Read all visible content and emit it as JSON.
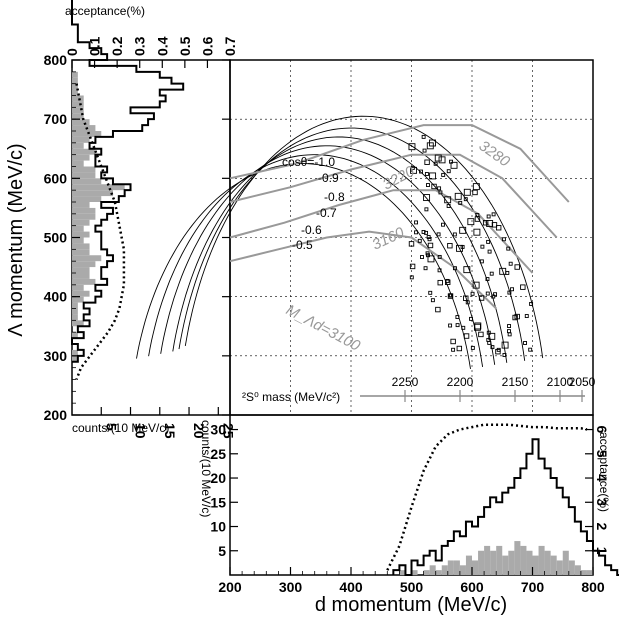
{
  "chart_data": [
    {
      "id": "left",
      "type": "histogram",
      "ylabel": "Λ momentum (MeV/c)",
      "xlabel": "counts/(10 MeV/c)",
      "top_axis_label": "acceptance(%)",
      "y_ticks": [
        "200",
        "300",
        "400",
        "500",
        "600",
        "700",
        "800"
      ],
      "x_ticks": [
        "5",
        "10",
        "15",
        "20",
        "25"
      ],
      "top_ticks": [
        "0",
        "0.1",
        "0.2",
        "0.3",
        "0.4",
        "0.5",
        "0.6",
        "0.7"
      ],
      "ylim": [
        200,
        800
      ],
      "xlim": [
        0,
        27
      ],
      "acc_lim": [
        0,
        0.7
      ],
      "bins_start": 290,
      "bin_width": 10,
      "outline": [
        1,
        2,
        1,
        0,
        2,
        1,
        3,
        2,
        3,
        2,
        4,
        5,
        4,
        6,
        5,
        5,
        6,
        7,
        6,
        5,
        5,
        5,
        4,
        5,
        6,
        7,
        5,
        8,
        9,
        10,
        7,
        5,
        6,
        4,
        4,
        5,
        3,
        4,
        7,
        12,
        13,
        14,
        10,
        15,
        16,
        15,
        19,
        17,
        15,
        11,
        3,
        6,
        5,
        3,
        1,
        1,
        1,
        0,
        0,
        0,
        0,
        0,
        0,
        0,
        0,
        0,
        0,
        0,
        0,
        0,
        0
      ],
      "filled": [
        1,
        1,
        0,
        0,
        1,
        0,
        2,
        1,
        1,
        1,
        2,
        3,
        2,
        4,
        3,
        3,
        4,
        5,
        3,
        3,
        2,
        3,
        2,
        3,
        4,
        4,
        3,
        5,
        7,
        9,
        5,
        4,
        4,
        2,
        3,
        4,
        2,
        3,
        5,
        4,
        3,
        2,
        2,
        2,
        2,
        1,
        1,
        1,
        1,
        0,
        0,
        0,
        0,
        0,
        0,
        0,
        0,
        0,
        0,
        0,
        0,
        0,
        0,
        0,
        0,
        0,
        0,
        0,
        0,
        0
      ],
      "acceptance": [
        [
          0.02,
          300
        ],
        [
          0.05,
          320
        ],
        [
          0.09,
          340
        ],
        [
          0.14,
          360
        ],
        [
          0.19,
          380
        ],
        [
          0.22,
          400
        ],
        [
          0.23,
          420
        ],
        [
          0.22,
          440
        ],
        [
          0.2,
          460
        ],
        [
          0.17,
          480
        ],
        [
          0.13,
          500
        ],
        [
          0.09,
          520
        ],
        [
          0.06,
          540
        ],
        [
          0.04,
          560
        ],
        [
          0.02,
          580
        ],
        [
          0.005,
          600
        ]
      ],
      "acceptance_scatter": [
        [
          0.02,
          760
        ],
        [
          0.03,
          740
        ],
        [
          0.04,
          720
        ],
        [
          0.05,
          700
        ],
        [
          0.07,
          680
        ],
        [
          0.09,
          660
        ],
        [
          0.11,
          640
        ],
        [
          0.13,
          620
        ],
        [
          0.15,
          600
        ],
        [
          0.17,
          580
        ],
        [
          0.19,
          560
        ],
        [
          0.2,
          540
        ],
        [
          0.21,
          520
        ],
        [
          0.22,
          500
        ],
        [
          0.23,
          480
        ],
        [
          0.23,
          460
        ],
        [
          0.23,
          440
        ],
        [
          0.23,
          420
        ],
        [
          0.22,
          400
        ],
        [
          0.21,
          380
        ],
        [
          0.19,
          360
        ],
        [
          0.16,
          340
        ],
        [
          0.12,
          320
        ],
        [
          0.08,
          300
        ],
        [
          0.04,
          280
        ],
        [
          0.02,
          260
        ]
      ]
    },
    {
      "id": "bottom",
      "type": "histogram",
      "xlabel": "d momentum (MeV/c)",
      "ylabel": "counts/(10 MeV/c)",
      "right_axis_label": "acceptance(%)",
      "x_ticks": [
        "200",
        "300",
        "400",
        "500",
        "600",
        "700",
        "800"
      ],
      "y_ticks": [
        "5",
        "10",
        "15",
        "20",
        "25",
        "30"
      ],
      "right_ticks": [
        "1",
        "2",
        "3",
        "4",
        "5",
        "6"
      ],
      "xlim": [
        200,
        800
      ],
      "ylim": [
        0,
        33
      ],
      "acc_lim": [
        0,
        6.6
      ],
      "bins_start": 470,
      "bin_width": 10,
      "outline": [
        1,
        2,
        0,
        3,
        2,
        4,
        5,
        3,
        6,
        7,
        9,
        8,
        11,
        10,
        12,
        14,
        16,
        15,
        17,
        18,
        20,
        22,
        25,
        28,
        24,
        22,
        20,
        18,
        16,
        14,
        11,
        9,
        7,
        5,
        4,
        2,
        1,
        0
      ],
      "filled": [
        0,
        1,
        0,
        1,
        0,
        1,
        2,
        1,
        2,
        3,
        3,
        2,
        4,
        3,
        5,
        6,
        5,
        6,
        4,
        5,
        7,
        6,
        5,
        4,
        6,
        5,
        4,
        3,
        5,
        3,
        2,
        1,
        1,
        0,
        0,
        0,
        0,
        0
      ],
      "acceptance": [
        [
          460,
          0.2
        ],
        [
          480,
          1.2
        ],
        [
          500,
          2.8
        ],
        [
          520,
          4.3
        ],
        [
          540,
          5.3
        ],
        [
          560,
          5.8
        ],
        [
          580,
          6.0
        ],
        [
          600,
          6.1
        ],
        [
          620,
          6.2
        ],
        [
          640,
          6.2
        ],
        [
          660,
          6.2
        ],
        [
          680,
          6.15
        ],
        [
          700,
          6.1
        ],
        [
          720,
          6.1
        ],
        [
          740,
          6.05
        ],
        [
          760,
          6.05
        ],
        [
          780,
          6.05
        ],
        [
          790,
          6.0
        ]
      ]
    },
    {
      "id": "main",
      "type": "scatter",
      "xlim": [
        200,
        800
      ],
      "ylim": [
        200,
        800
      ],
      "cos_labels": [
        "cosθ=-1.0",
        "-0.9",
        "-0.8",
        "-0.7",
        "-0.6",
        "-0.5"
      ],
      "mass_labels": [
        "3220",
        "3280",
        "3160",
        "M_Λd=3100"
      ],
      "mass_axis_label": "²S⁰ mass (MeV/c²)",
      "mass_ticks": [
        "2250",
        "2200",
        "2150",
        "2100",
        "2050"
      ]
    }
  ]
}
